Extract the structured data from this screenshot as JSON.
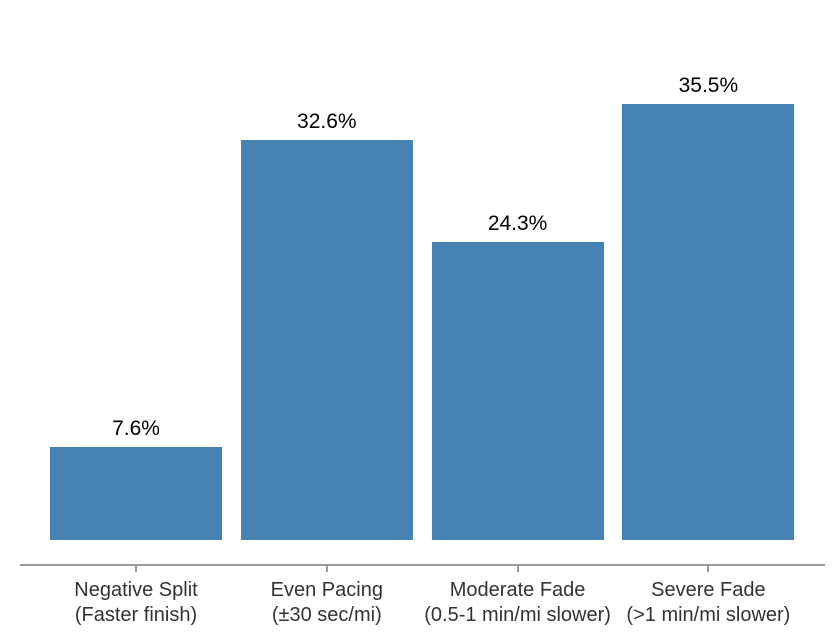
{
  "chart_data": {
    "type": "bar",
    "title": "",
    "categories": [
      "Negative Split\n(Faster finish)",
      "Even Pacing\n(±30 sec/mi)",
      "Moderate Fade\n(0.5-1 min/mi slower)",
      "Severe Fade\n(>1 min/mi slower)"
    ],
    "values": [
      7.6,
      32.6,
      24.3,
      35.5
    ],
    "value_labels": [
      "7.6%",
      "32.6%",
      "24.3%",
      "35.5%"
    ],
    "xlabel": "",
    "ylabel": "",
    "ylim": [
      0,
      39
    ],
    "grid": false,
    "legend": false,
    "y_axis_shown": false,
    "bar_color": "#4682B4",
    "axis_color": "#999999",
    "tick_color": "#999999",
    "value_label_color": "#000000",
    "tick_label_color": "#333333",
    "background_color": "#ffffff"
  }
}
